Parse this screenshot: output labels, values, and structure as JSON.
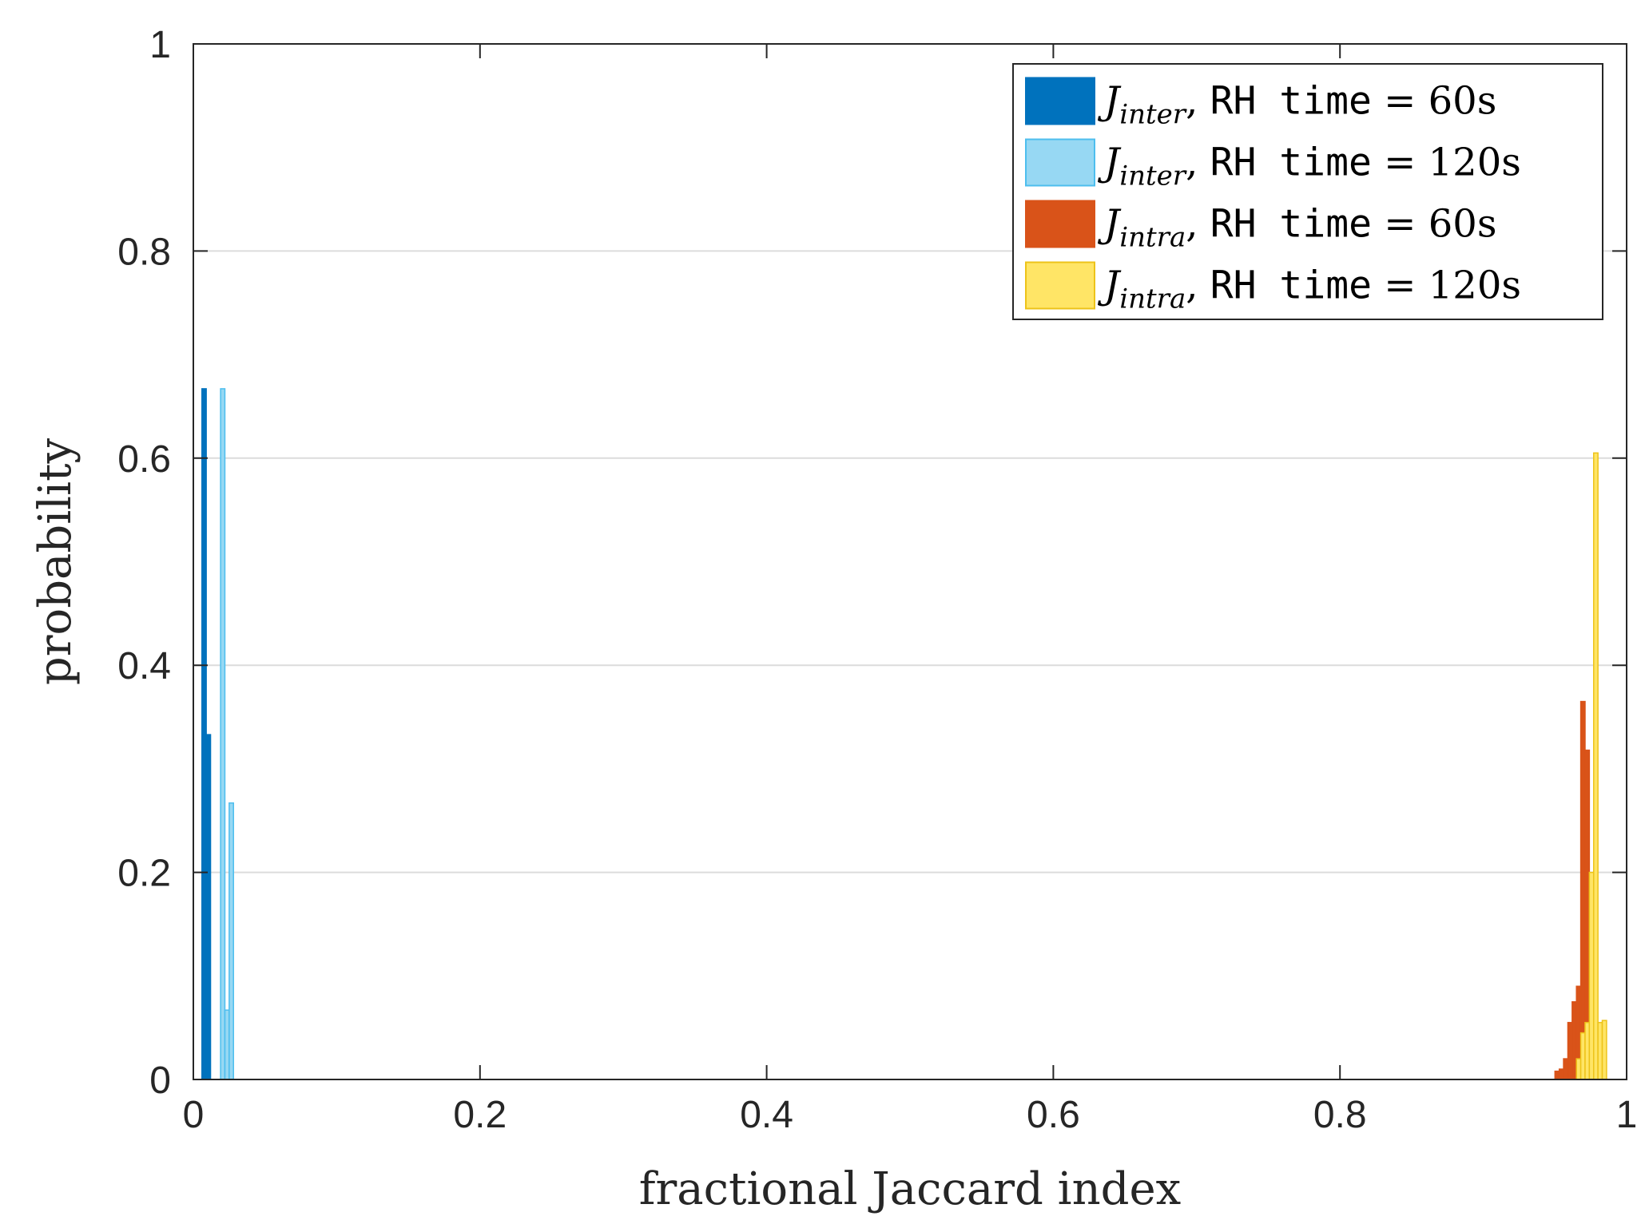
{
  "chart_data": {
    "type": "bar",
    "xlabel": "fractional Jaccard index",
    "ylabel": "probability",
    "xlim": [
      0,
      1
    ],
    "ylim": [
      0,
      1
    ],
    "xticks": [
      0,
      0.2,
      0.4,
      0.6,
      0.8,
      1
    ],
    "xtick_labels": [
      "0",
      "0.2",
      "0.4",
      "0.6",
      "0.8",
      "1"
    ],
    "yticks": [
      0,
      0.2,
      0.4,
      0.6,
      0.8,
      1
    ],
    "ytick_labels": [
      "0",
      "0.2",
      "0.4",
      "0.6",
      "0.8",
      "1"
    ],
    "grid": "horizontal",
    "legend_position": "top-right",
    "bin_width": 0.003,
    "series": [
      {
        "name": "J_inter, RH time = 60s",
        "name_parts": {
          "symbol": "J",
          "subscript": "inter",
          "code": "RH time",
          "value": "60s"
        },
        "color": "#0072BD",
        "edge": "#0072BD",
        "x": [
          0.0075,
          0.0105
        ],
        "values": [
          0.667,
          0.333
        ]
      },
      {
        "name": "J_inter, RH time = 120s",
        "name_parts": {
          "symbol": "J",
          "subscript": "inter",
          "code": "RH time",
          "value": "120s"
        },
        "color": "#97D8F3",
        "edge": "#4DBEEE",
        "x": [
          0.0205,
          0.0235,
          0.0265
        ],
        "values": [
          0.667,
          0.067,
          0.267
        ]
      },
      {
        "name": "J_intra, RH time = 60s",
        "name_parts": {
          "symbol": "J",
          "subscript": "intra",
          "code": "RH time",
          "value": "60s"
        },
        "color": "#D95319",
        "edge": "#D95319",
        "x": [
          0.9515,
          0.9545,
          0.9575,
          0.9605,
          0.9635,
          0.9665,
          0.9695,
          0.9725,
          0.9755,
          0.9785
        ],
        "values": [
          0.008,
          0.01,
          0.02,
          0.055,
          0.075,
          0.09,
          0.365,
          0.318,
          0.03,
          0.01
        ]
      },
      {
        "name": "J_intra, RH time = 120s",
        "name_parts": {
          "symbol": "J",
          "subscript": "intra",
          "code": "RH time",
          "value": "120s"
        },
        "color": "#FFE566",
        "edge": "#EDC319",
        "x": [
          0.9665,
          0.9695,
          0.9725,
          0.9755,
          0.9785,
          0.9815,
          0.9845
        ],
        "values": [
          0.02,
          0.045,
          0.055,
          0.2,
          0.605,
          0.055,
          0.057
        ]
      }
    ]
  }
}
